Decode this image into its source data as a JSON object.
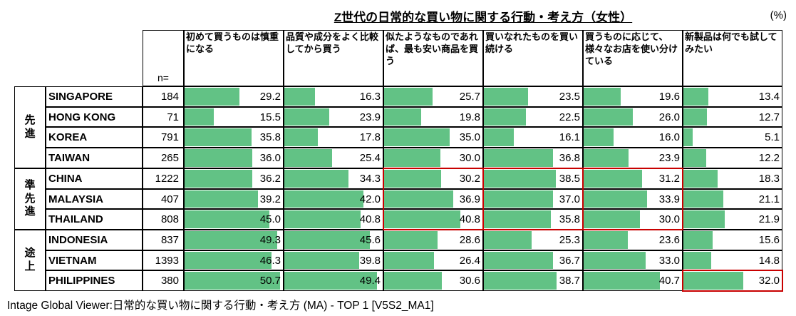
{
  "title": "Z世代の日常的な買い物に関する行動・考え方（女性）",
  "unit_label": "(%)",
  "footer": "Intage Global Viewer:日常的な買い物に関する行動・考え方 (MA) - TOP 1 [V5S2_MA1]",
  "colors": {
    "bar_green": "#62c285",
    "highlight_red": "#c80000",
    "grid_black": "#000000"
  },
  "bar_scale_max": 52,
  "table": {
    "n_label": "n=",
    "columns": [
      "初めて買うものは慎重になる",
      "品質や成分をよく比較してから買う",
      "似たようなものであれば、最も安い商品を買う",
      "買いなれたものを買い続ける",
      "買うものに応じて、様々なお店を使い分けている",
      "新製品は何でも試してみたい"
    ],
    "groups": [
      {
        "label": "先進",
        "start_row": 0,
        "row_span": 4
      },
      {
        "label": "準先進",
        "start_row": 4,
        "row_span": 3
      },
      {
        "label": "途上",
        "start_row": 7,
        "row_span": 3
      }
    ],
    "rows": [
      {
        "country": "SINGAPORE",
        "n": "184",
        "values": [
          29.2,
          16.3,
          25.7,
          23.5,
          19.6,
          13.4
        ]
      },
      {
        "country": "HONG KONG",
        "n": "71",
        "values": [
          15.5,
          23.9,
          19.8,
          22.5,
          26.0,
          12.7
        ]
      },
      {
        "country": "KOREA",
        "n": "791",
        "values": [
          35.8,
          17.8,
          35.0,
          16.1,
          16.0,
          5.1
        ]
      },
      {
        "country": "TAIWAN",
        "n": "265",
        "values": [
          36.0,
          25.4,
          30.0,
          36.8,
          23.9,
          12.2
        ]
      },
      {
        "country": "CHINA",
        "n": "1222",
        "values": [
          36.2,
          34.3,
          30.2,
          38.5,
          31.2,
          18.3
        ]
      },
      {
        "country": "MALAYSIA",
        "n": "407",
        "values": [
          39.2,
          42.0,
          36.9,
          37.0,
          33.9,
          21.1
        ]
      },
      {
        "country": "THAILAND",
        "n": "808",
        "values": [
          45.0,
          40.8,
          40.8,
          35.8,
          30.0,
          21.9
        ]
      },
      {
        "country": "INDONESIA",
        "n": "837",
        "values": [
          49.3,
          45.6,
          28.6,
          25.3,
          23.6,
          15.6
        ]
      },
      {
        "country": "VIETNAM",
        "n": "1393",
        "values": [
          46.3,
          39.8,
          26.4,
          36.7,
          33.0,
          14.8
        ]
      },
      {
        "country": "PHILIPPINES",
        "n": "380",
        "values": [
          50.7,
          49.4,
          30.6,
          38.7,
          40.7,
          32.0
        ]
      }
    ],
    "highlights": [
      {
        "col_index": 2,
        "start_row": 4,
        "row_span": 3
      },
      {
        "col_index": 3,
        "start_row": 4,
        "row_span": 3
      },
      {
        "col_index": 4,
        "start_row": 4,
        "row_span": 3
      },
      {
        "col_index": 5,
        "start_row": 9,
        "row_span": 1
      }
    ]
  },
  "chart_data": {
    "type": "table",
    "title": "Z世代の日常的な買い物に関する行動・考え方（女性）",
    "unit": "%",
    "source": "Intage Global Viewer:日常的な買い物に関する行動・考え方 (MA) - TOP 1 [V5S2_MA1]",
    "categories": [
      "SINGAPORE",
      "HONG KONG",
      "KOREA",
      "TAIWAN",
      "CHINA",
      "MALAYSIA",
      "THAILAND",
      "INDONESIA",
      "VIETNAM",
      "PHILIPPINES"
    ],
    "category_groups": {
      "先進": [
        "SINGAPORE",
        "HONG KONG",
        "KOREA",
        "TAIWAN"
      ],
      "準先進": [
        "CHINA",
        "MALAYSIA",
        "THAILAND"
      ],
      "途上": [
        "INDONESIA",
        "VIETNAM",
        "PHILIPPINES"
      ]
    },
    "n": [
      184,
      71,
      791,
      265,
      1222,
      407,
      808,
      837,
      1393,
      380
    ],
    "series": [
      {
        "name": "初めて買うものは慎重になる",
        "values": [
          29.2,
          15.5,
          35.8,
          36.0,
          36.2,
          39.2,
          45.0,
          49.3,
          46.3,
          50.7
        ]
      },
      {
        "name": "品質や成分をよく比較してから買う",
        "values": [
          16.3,
          23.9,
          17.8,
          25.4,
          34.3,
          42.0,
          40.8,
          45.6,
          39.8,
          49.4
        ]
      },
      {
        "name": "似たようなものであれば、最も安い商品を買う",
        "values": [
          25.7,
          19.8,
          35.0,
          30.0,
          30.2,
          36.9,
          40.8,
          28.6,
          26.4,
          30.6
        ]
      },
      {
        "name": "買いなれたものを買い続ける",
        "values": [
          23.5,
          22.5,
          16.1,
          36.8,
          38.5,
          37.0,
          35.8,
          25.3,
          36.7,
          38.7
        ]
      },
      {
        "name": "買うものに応じて、様々なお店を使い分けている",
        "values": [
          19.6,
          26.0,
          16.0,
          23.9,
          31.2,
          33.9,
          30.0,
          23.6,
          33.0,
          40.7
        ]
      },
      {
        "name": "新製品は何でも試してみたい",
        "values": [
          13.4,
          12.7,
          5.1,
          12.2,
          18.3,
          21.1,
          21.9,
          15.6,
          14.8,
          32.0
        ]
      }
    ],
    "highlighted_cells": [
      {
        "rows": [
          "CHINA",
          "MALAYSIA",
          "THAILAND"
        ],
        "columns": [
          "似たようなものであれば、最も安い商品を買う",
          "買いなれたものを買い続ける",
          "買うものに応じて、様々なお店を使い分けている"
        ]
      },
      {
        "rows": [
          "PHILIPPINES"
        ],
        "columns": [
          "新製品は何でも試してみたい"
        ]
      }
    ],
    "layout_hints": {
      "bars": "in-cell horizontal data bars, linear scale 0 to ~52%",
      "grid": true
    }
  }
}
